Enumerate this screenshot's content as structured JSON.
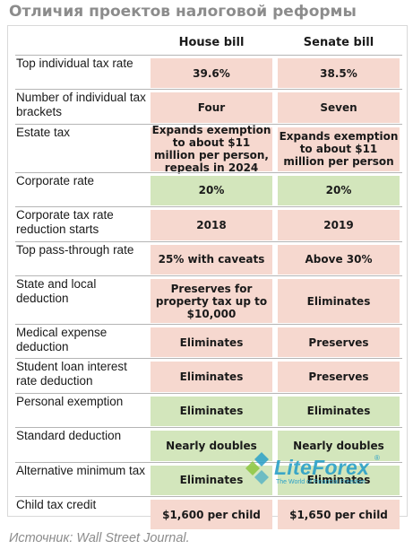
{
  "title": "Отличия проектов налоговой реформы",
  "columns": {
    "house": "House bill",
    "senate": "Senate bill"
  },
  "rows": [
    {
      "label": "Top individual tax rate",
      "house": "39.6%",
      "senate": "38.5%",
      "house_color": "pink",
      "senate_color": "pink"
    },
    {
      "label": "Number of individual tax brackets",
      "house": "Four",
      "senate": "Seven",
      "house_color": "pink",
      "senate_color": "pink"
    },
    {
      "label": "Estate tax",
      "house": "Expands exemption to about $11 million per person, repeals in 2024",
      "senate": "Expands exemption to about $11 million per person",
      "house_color": "pink",
      "senate_color": "pink"
    },
    {
      "label": "Corporate rate",
      "house": "20%",
      "senate": "20%",
      "house_color": "green",
      "senate_color": "green"
    },
    {
      "label": "Corporate tax rate reduction starts",
      "house": "2018",
      "senate": "2019",
      "house_color": "pink",
      "senate_color": "pink"
    },
    {
      "label": "Top pass-through rate",
      "house": "25% with caveats",
      "senate": "Above 30%",
      "house_color": "pink",
      "senate_color": "pink"
    },
    {
      "label": "State and local deduction",
      "house": "Preserves for property tax up to $10,000",
      "senate": "Eliminates",
      "house_color": "pink",
      "senate_color": "pink"
    },
    {
      "label": "Medical expense deduction",
      "house": "Eliminates",
      "senate": "Preserves",
      "house_color": "pink",
      "senate_color": "pink"
    },
    {
      "label": "Student loan interest rate deduction",
      "house": "Eliminates",
      "senate": "Preserves",
      "house_color": "pink",
      "senate_color": "pink"
    },
    {
      "label": "Personal exemption",
      "house": "Eliminates",
      "senate": "Eliminates",
      "house_color": "green",
      "senate_color": "green"
    },
    {
      "label": "Standard deduction",
      "house": "Nearly doubles",
      "senate": "Nearly doubles",
      "house_color": "green",
      "senate_color": "green"
    },
    {
      "label": "Alternative minimum tax",
      "house": "Eliminates",
      "senate": "Eliminates",
      "house_color": "green",
      "senate_color": "green"
    },
    {
      "label": "Child tax credit",
      "house": "$1,600 per child",
      "senate": "$1,650 per child",
      "house_color": "pink",
      "senate_color": "pink"
    }
  ],
  "colors": {
    "pink": "#f6d8cf",
    "green": "#d3e6bc"
  },
  "source": "Источник: Wall Street Journal.",
  "watermark": {
    "name": "LiteForex",
    "tagline": "The World of Financial Freedom",
    "reg": "®"
  }
}
